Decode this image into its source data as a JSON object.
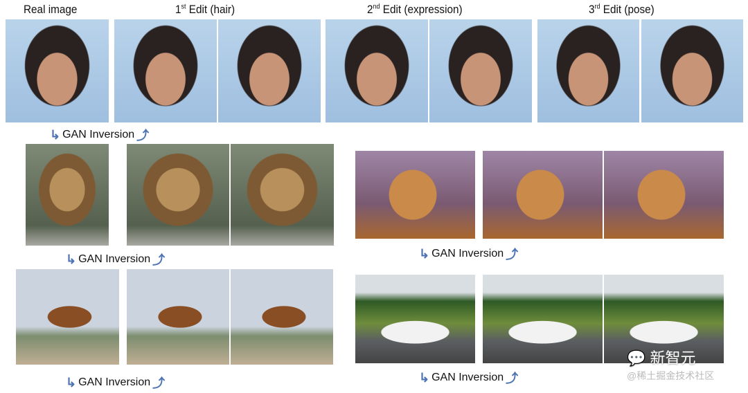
{
  "headers": {
    "real": "Real image",
    "edit1": {
      "ordinal": "1",
      "sup": "st",
      "label": "Edit (hair)"
    },
    "edit2": {
      "ordinal": "2",
      "sup": "nd",
      "label": "Edit (expression)"
    },
    "edit3": {
      "ordinal": "3",
      "sup": "rd",
      "label": "Edit (pose)"
    }
  },
  "gan_label": "GAN Inversion",
  "watermark": {
    "logo": "新智元",
    "credit": "@稀土掘金技术社区"
  },
  "colors": {
    "arrow": "#4d73b3",
    "handle_point": "#e02020",
    "target_point": "#1a2ab0"
  }
}
